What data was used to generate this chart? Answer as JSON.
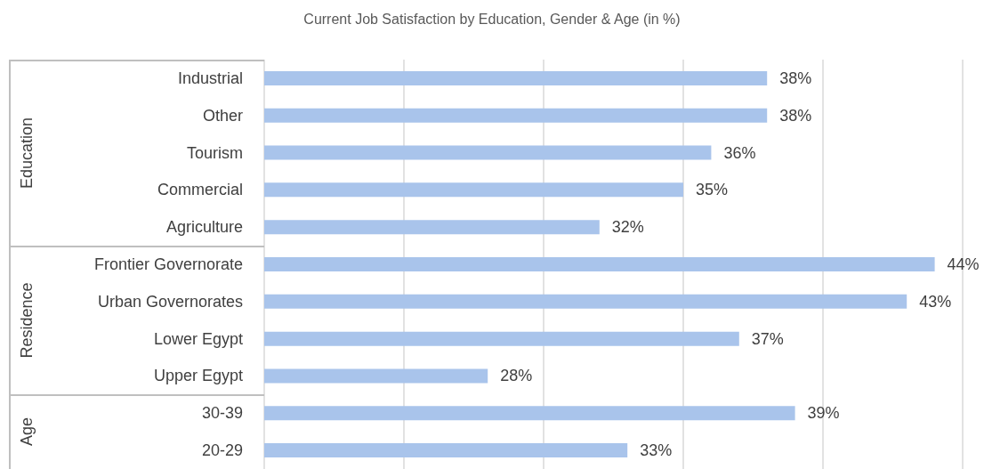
{
  "chart_data": {
    "type": "bar",
    "orientation": "horizontal",
    "title": "Current Job Satisfaction by Education, Gender & Age (in %)",
    "categories": [
      "Industrial",
      "Other",
      "Tourism",
      "Commercial",
      "Agriculture",
      "Frontier Governorate",
      "Urban Governorates",
      "Lower Egypt",
      "Upper Egypt",
      "30-39",
      "20-29"
    ],
    "values": [
      38,
      38,
      36,
      35,
      32,
      44,
      43,
      37,
      28,
      39,
      33
    ],
    "value_labels": [
      "38%",
      "38%",
      "36%",
      "35%",
      "32%",
      "44%",
      "43%",
      "37%",
      "28%",
      "39%",
      "33%"
    ],
    "color": "#a9c4eb",
    "xlim": [
      20,
      45
    ],
    "xticks": [
      {
        "value": 20,
        "label": null
      },
      {
        "value": 25,
        "label": null
      },
      {
        "value": 30,
        "label": null
      },
      {
        "value": 35,
        "label": null
      },
      {
        "value": 40,
        "label": null
      },
      {
        "value": 45,
        "label": null
      }
    ],
    "tick_labels": "y",
    "grid": "x",
    "annotations": [
      "Education",
      "Residence",
      "Age"
    ]
  }
}
